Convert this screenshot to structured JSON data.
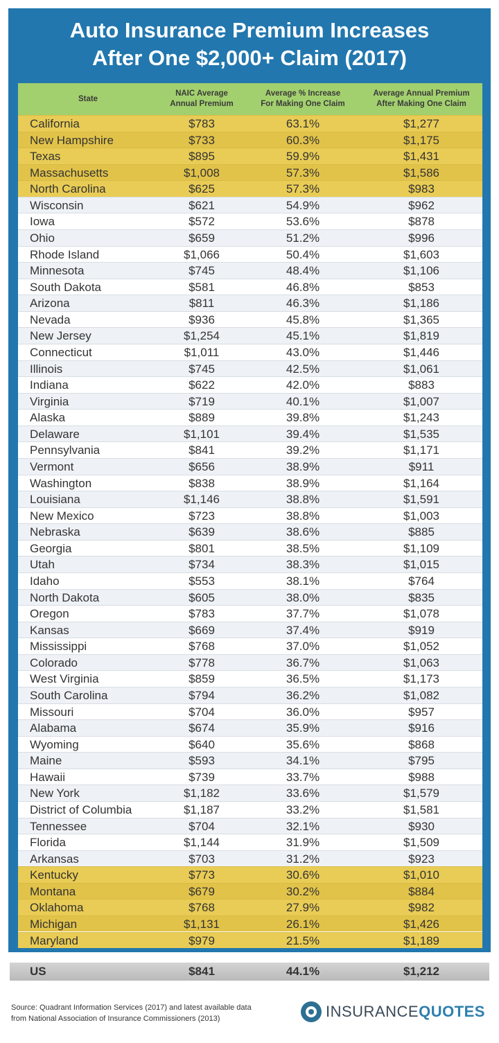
{
  "title": [
    "Auto Insurance Premium Increases",
    "After One $2,000+ Claim (2017)"
  ],
  "chart_data": {
    "type": "table",
    "columns": [
      "State",
      "NAIC Average Annual Premium",
      "Average % Increase For Making One Claim",
      "Average Annual Premium After Making One Claim"
    ],
    "header_lines": [
      [
        "State"
      ],
      [
        "NAIC Average",
        "Annual Premium"
      ],
      [
        "Average % Increase",
        "For Making One Claim"
      ],
      [
        "Average Annual Premium",
        "After Making One Claim"
      ]
    ],
    "rows": [
      [
        "California",
        "$783",
        "63.1%",
        "$1,277"
      ],
      [
        "New Hampshire",
        "$733",
        "60.3%",
        "$1,175"
      ],
      [
        "Texas",
        "$895",
        "59.9%",
        "$1,431"
      ],
      [
        "Massachusetts",
        "$1,008",
        "57.3%",
        "$1,586"
      ],
      [
        "North Carolina",
        "$625",
        "57.3%",
        "$983"
      ],
      [
        "Wisconsin",
        "$621",
        "54.9%",
        "$962"
      ],
      [
        "Iowa",
        "$572",
        "53.6%",
        "$878"
      ],
      [
        "Ohio",
        "$659",
        "51.2%",
        "$996"
      ],
      [
        "Rhode Island",
        "$1,066",
        "50.4%",
        "$1,603"
      ],
      [
        "Minnesota",
        "$745",
        "48.4%",
        "$1,106"
      ],
      [
        "South Dakota",
        "$581",
        "46.8%",
        "$853"
      ],
      [
        "Arizona",
        "$811",
        "46.3%",
        "$1,186"
      ],
      [
        "Nevada",
        "$936",
        "45.8%",
        "$1,365"
      ],
      [
        "New Jersey",
        "$1,254",
        "45.1%",
        "$1,819"
      ],
      [
        "Connecticut",
        "$1,011",
        "43.0%",
        "$1,446"
      ],
      [
        "Illinois",
        "$745",
        "42.5%",
        "$1,061"
      ],
      [
        "Indiana",
        "$622",
        "42.0%",
        "$883"
      ],
      [
        "Virginia",
        "$719",
        "40.1%",
        "$1,007"
      ],
      [
        "Alaska",
        "$889",
        "39.8%",
        "$1,243"
      ],
      [
        "Delaware",
        "$1,101",
        "39.4%",
        "$1,535"
      ],
      [
        "Pennsylvania",
        "$841",
        "39.2%",
        "$1,171"
      ],
      [
        "Vermont",
        "$656",
        "38.9%",
        "$911"
      ],
      [
        "Washington",
        "$838",
        "38.9%",
        "$1,164"
      ],
      [
        "Louisiana",
        "$1,146",
        "38.8%",
        "$1,591"
      ],
      [
        "New Mexico",
        "$723",
        "38.8%",
        "$1,003"
      ],
      [
        "Nebraska",
        "$639",
        "38.6%",
        "$885"
      ],
      [
        "Georgia",
        "$801",
        "38.5%",
        "$1,109"
      ],
      [
        "Utah",
        "$734",
        "38.3%",
        "$1,015"
      ],
      [
        "Idaho",
        "$553",
        "38.1%",
        "$764"
      ],
      [
        "North Dakota",
        "$605",
        "38.0%",
        "$835"
      ],
      [
        "Oregon",
        "$783",
        "37.7%",
        "$1,078"
      ],
      [
        "Kansas",
        "$669",
        "37.4%",
        "$919"
      ],
      [
        "Mississippi",
        "$768",
        "37.0%",
        "$1,052"
      ],
      [
        "Colorado",
        "$778",
        "36.7%",
        "$1,063"
      ],
      [
        "West Virginia",
        "$859",
        "36.5%",
        "$1,173"
      ],
      [
        "South Carolina",
        "$794",
        "36.2%",
        "$1,082"
      ],
      [
        "Missouri",
        "$704",
        "36.0%",
        "$957"
      ],
      [
        "Alabama",
        "$674",
        "35.9%",
        "$916"
      ],
      [
        "Wyoming",
        "$640",
        "35.6%",
        "$868"
      ],
      [
        "Maine",
        "$593",
        "34.1%",
        "$795"
      ],
      [
        "Hawaii",
        "$739",
        "33.7%",
        "$988"
      ],
      [
        "New York",
        "$1,182",
        "33.6%",
        "$1,579"
      ],
      [
        "District of Columbia",
        "$1,187",
        "33.2%",
        "$1,581"
      ],
      [
        "Tennessee",
        "$704",
        "32.1%",
        "$930"
      ],
      [
        "Florida",
        "$1,144",
        "31.9%",
        "$1,509"
      ],
      [
        "Arkansas",
        "$703",
        "31.2%",
        "$923"
      ],
      [
        "Kentucky",
        "$773",
        "30.6%",
        "$1,010"
      ],
      [
        "Montana",
        "$679",
        "30.2%",
        "$884"
      ],
      [
        "Oklahoma",
        "$768",
        "27.9%",
        "$982"
      ],
      [
        "Michigan",
        "$1,131",
        "26.1%",
        "$1,426"
      ],
      [
        "Maryland",
        "$979",
        "21.5%",
        "$1,189"
      ]
    ],
    "highlighted_top_count": 5,
    "highlighted_bottom_count": 5,
    "total_row": [
      "US",
      "$841",
      "44.1%",
      "$1,212"
    ]
  },
  "source": [
    "Source: Quadrant Information Services (2017) and latest available data",
    "from National Association of Insurance Commissioners (2013)"
  ],
  "logo": {
    "part1": "INSURANCE",
    "part2": "QUOTES"
  },
  "colors": {
    "frame": "#2277ae",
    "header": "#a3d06e",
    "highlight": "#e9cc55",
    "total_row": "#c7c7c7"
  }
}
